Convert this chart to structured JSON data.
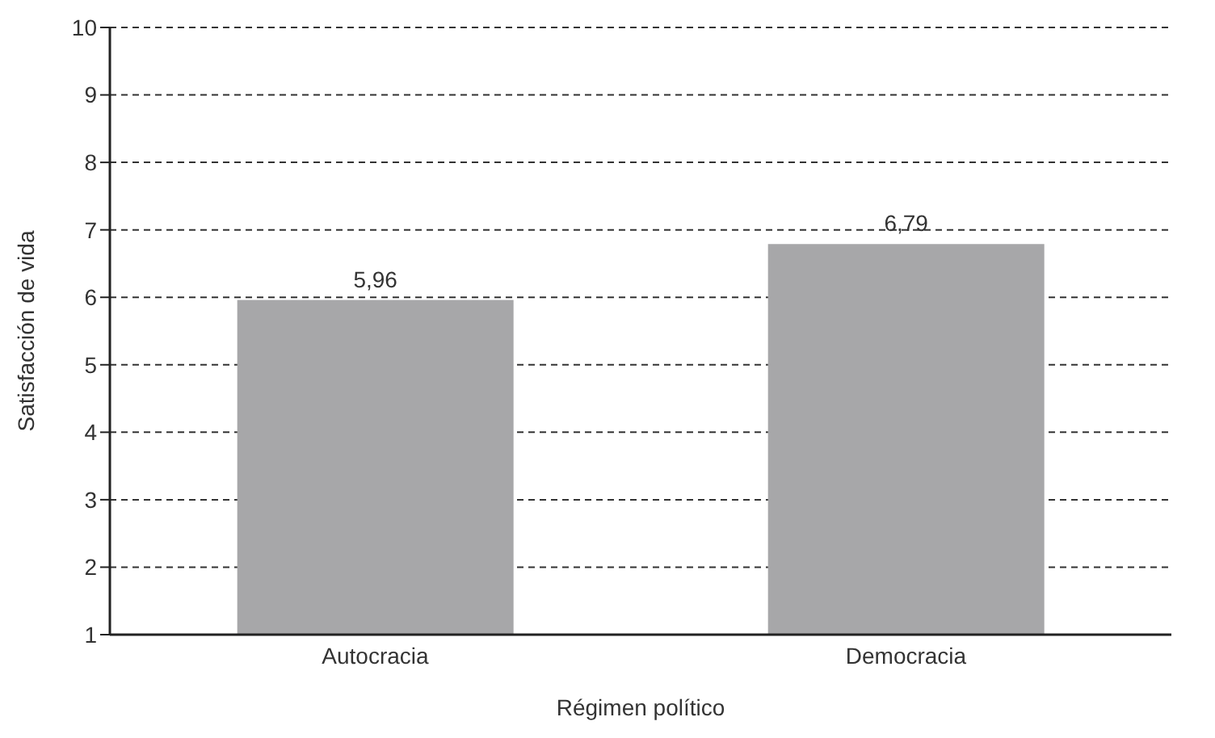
{
  "chart_data": {
    "type": "bar",
    "xlabel": "Régimen político",
    "ylabel": "Satisfacción de vida",
    "categories": [
      "Autocracia",
      "Democracia"
    ],
    "values": [
      5.96,
      6.79
    ],
    "value_labels": [
      "5,96",
      "6,79"
    ],
    "color": "#a7a7a9",
    "ylim": [
      1,
      10
    ],
    "yticks": [
      1,
      2,
      3,
      4,
      5,
      6,
      7,
      8,
      9,
      10
    ],
    "grid": "y"
  }
}
